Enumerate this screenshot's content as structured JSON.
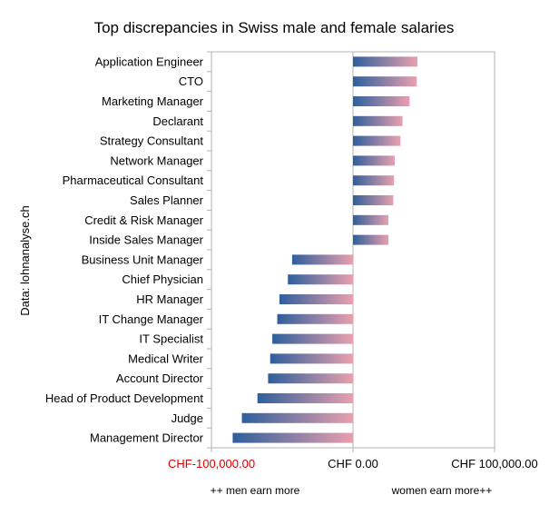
{
  "chart_data": {
    "type": "bar",
    "orientation": "horizontal",
    "title": "Top discrepancies in Swiss male and female salaries",
    "ylabel": "Data: lohnanalyse.ch",
    "xlim": [
      -100000,
      100000
    ],
    "x_ticks": [
      {
        "label": "CHF-100,000.00",
        "value": -100000,
        "color": "#e00000"
      },
      {
        "label": "CHF 0.00",
        "value": 0,
        "color": "#000000"
      },
      {
        "label": "CHF 100,000.00",
        "value": 100000,
        "color": "#000000"
      }
    ],
    "annotations": {
      "left": "++ men earn more",
      "right": "women earn more++"
    },
    "gradient": {
      "start": "#2e5f9c",
      "end": "#e9a0ae"
    },
    "categories": [
      "Application Engineer",
      "CTO",
      "Marketing Manager",
      "Declarant",
      "Strategy Consultant",
      "Network Manager",
      "Pharmaceutical Consultant",
      "Sales Planner",
      "Credit & Risk Manager",
      "Inside Sales Manager",
      "Business Unit Manager",
      "Chief Physician",
      "HR Manager",
      "IT Change Manager",
      "IT Specialist",
      "Medical Writer",
      "Account Director",
      "Head of Product Development",
      "Judge",
      "Management Director"
    ],
    "values": [
      45500,
      45000,
      40000,
      35000,
      33500,
      29500,
      29000,
      28500,
      25000,
      25000,
      -43000,
      -46000,
      -52000,
      -53500,
      -57000,
      -58500,
      -60000,
      -67500,
      -78500,
      -85000
    ]
  }
}
